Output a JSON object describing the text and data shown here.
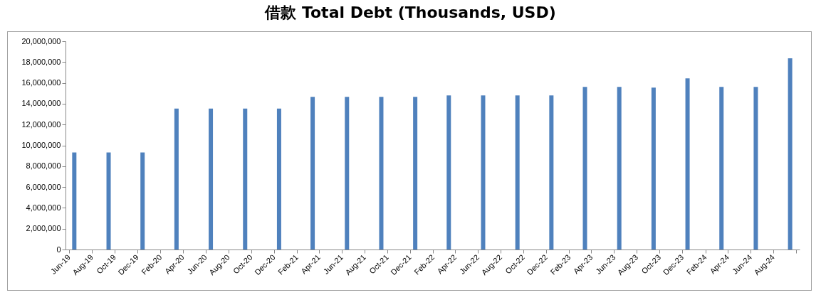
{
  "chart_data": {
    "type": "bar",
    "title": "借款 Total Debt (Thousands, USD)",
    "x": [
      "2019-06-15",
      "2019-09-15",
      "2019-12-15",
      "2020-03-15",
      "2020-06-15",
      "2020-09-15",
      "2020-12-15",
      "2021-03-15",
      "2021-06-15",
      "2021-09-15",
      "2021-12-15",
      "2022-03-15",
      "2022-06-15",
      "2022-09-15",
      "2022-12-15",
      "2023-03-15",
      "2023-06-15",
      "2023-09-15",
      "2023-12-15",
      "2024-03-15",
      "2024-06-15",
      "2024-09-15"
    ],
    "values": [
      9310000,
      9310000,
      9310000,
      13540000,
      13540000,
      13540000,
      13540000,
      14660000,
      14660000,
      14660000,
      14660000,
      14790000,
      14790000,
      14790000,
      14790000,
      15620000,
      15620000,
      15550000,
      16440000,
      15620000,
      15620000,
      18360000
    ],
    "color": "#4f81bd",
    "xlim": [
      "2019-06",
      "2024-10"
    ],
    "xticks": [
      {
        "value": "2019-06",
        "label": "Jun-19"
      },
      {
        "value": "2019-08",
        "label": "Aug-19"
      },
      {
        "value": "2019-10",
        "label": "Oct-19"
      },
      {
        "value": "2019-12",
        "label": "Dec-19"
      },
      {
        "value": "2020-02",
        "label": "Feb-20"
      },
      {
        "value": "2020-04",
        "label": "Apr-20"
      },
      {
        "value": "2020-06",
        "label": "Jun-20"
      },
      {
        "value": "2020-08",
        "label": "Aug-20"
      },
      {
        "value": "2020-10",
        "label": "Oct-20"
      },
      {
        "value": "2020-12",
        "label": "Dec-20"
      },
      {
        "value": "2021-02",
        "label": "Feb-21"
      },
      {
        "value": "2021-04",
        "label": "Apr-21"
      },
      {
        "value": "2021-06",
        "label": "Jun-21"
      },
      {
        "value": "2021-08",
        "label": "Aug-21"
      },
      {
        "value": "2021-10",
        "label": "Oct-21"
      },
      {
        "value": "2021-12",
        "label": "Dec-21"
      },
      {
        "value": "2022-02",
        "label": "Feb-22"
      },
      {
        "value": "2022-04",
        "label": "Apr-22"
      },
      {
        "value": "2022-06",
        "label": "Jun-22"
      },
      {
        "value": "2022-08",
        "label": "Aug-22"
      },
      {
        "value": "2022-10",
        "label": "Oct-22"
      },
      {
        "value": "2022-12",
        "label": "Dec-22"
      },
      {
        "value": "2023-02",
        "label": "Feb-23"
      },
      {
        "value": "2023-04",
        "label": "Apr-23"
      },
      {
        "value": "2023-06",
        "label": "Jun-23"
      },
      {
        "value": "2023-08",
        "label": "Aug-23"
      },
      {
        "value": "2023-10",
        "label": "Oct-23"
      },
      {
        "value": "2023-12",
        "label": "Dec-23"
      },
      {
        "value": "2024-02",
        "label": "Feb-24"
      },
      {
        "value": "2024-04",
        "label": "Apr-24"
      },
      {
        "value": "2024-06",
        "label": "Jun-24"
      },
      {
        "value": "2024-08",
        "label": "Aug-24"
      },
      {
        "value": "2024-10",
        "label": null
      }
    ],
    "ylim": [
      0,
      20000000
    ],
    "yticks": [
      0,
      {
        "value": 2000000,
        "label": "2,000,000"
      },
      {
        "value": 4000000,
        "label": "4,000,000"
      },
      {
        "value": 6000000,
        "label": "6,000,000"
      },
      {
        "value": 8000000,
        "label": "8,000,000"
      },
      {
        "value": 10000000,
        "label": "10,000,000"
      },
      {
        "value": 12000000,
        "label": "12,000,000"
      },
      {
        "value": 14000000,
        "label": "14,000,000"
      },
      {
        "value": 16000000,
        "label": "16,000,000"
      },
      {
        "value": 18000000,
        "label": "18,000,000"
      },
      {
        "value": 20000000,
        "label": "20,000,000"
      }
    ]
  }
}
